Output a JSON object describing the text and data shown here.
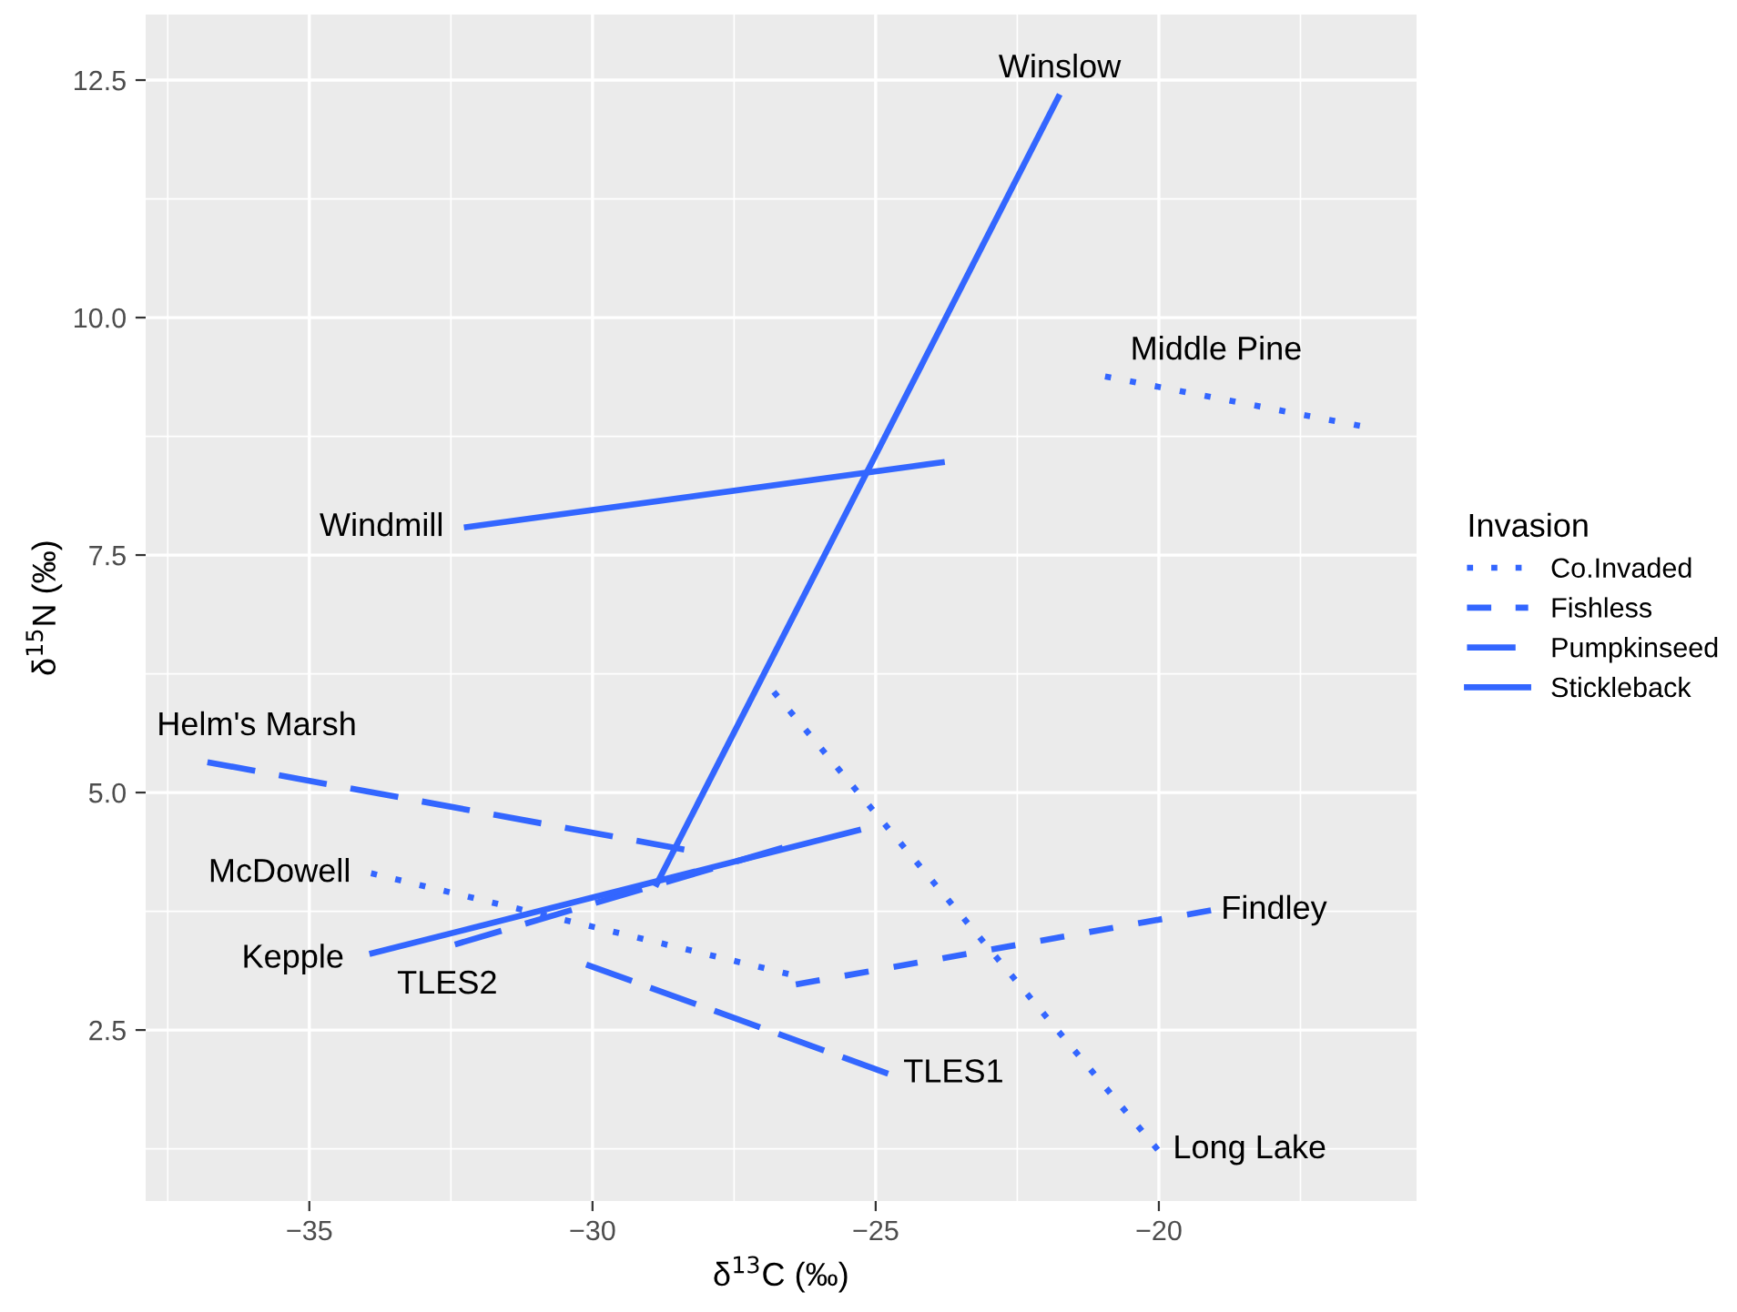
{
  "chart_data": {
    "type": "line",
    "xlabel": "δ$^{13}$C (‰)",
    "ylabel": "δ$^{15}$N (‰)",
    "legend_title": "Invasion",
    "series": [
      {
        "name": "Co.Invaded",
        "color": "#3366ff",
        "line_style": "dotted",
        "x": [
          -33.91,
          -26.54,
          null,
          -26.8,
          -20.02,
          null,
          -20.95,
          -16.45
        ],
        "values": [
          4.15,
          3.09,
          null,
          6.06,
          1.24,
          null,
          9.38,
          8.86
        ]
      },
      {
        "name": "Fishless",
        "color": "#3366ff",
        "line_style": "dashed",
        "x": [
          -26.41,
          -19.08
        ],
        "values": [
          2.98,
          3.76
        ]
      },
      {
        "name": "Pumpkinseed",
        "color": "#3366ff",
        "line_style": "longdash",
        "x": [
          -36.8,
          -28.38,
          null,
          -32.43,
          -26.64,
          null,
          -30.11,
          -24.78
        ],
        "values": [
          5.32,
          4.4,
          null,
          3.4,
          4.42,
          null,
          3.19,
          2.04
        ]
      },
      {
        "name": "Stickleback",
        "color": "#3366ff",
        "line_style": "solid",
        "x": [
          -28.89,
          -21.75,
          null,
          -32.27,
          -23.78,
          null,
          -33.94,
          -25.26
        ],
        "values": [
          4.01,
          12.35,
          null,
          7.79,
          8.48,
          null,
          3.3,
          4.61
        ]
      }
    ],
    "annotations": [
      {
        "text": "Winslow",
        "x": -21.75,
        "y": 12.35
      },
      {
        "text": "Middle Pine",
        "x": -20.95,
        "y": 9.38
      },
      {
        "text": "Windmill",
        "x": -32.27,
        "y": 7.79
      },
      {
        "text": "Helm's Marsh",
        "x": -36.8,
        "y": 5.32
      },
      {
        "text": "McDowell",
        "x": -33.91,
        "y": 4.15
      },
      {
        "text": "Findley",
        "x": -19.08,
        "y": 3.76
      },
      {
        "text": "Kepple",
        "x": -33.94,
        "y": 3.3
      },
      {
        "text": "TLES2",
        "x": -32.43,
        "y": 3.4
      },
      {
        "text": "TLES1",
        "x": -24.78,
        "y": 2.04
      },
      {
        "text": "Long Lake",
        "x": -20.02,
        "y": 1.24
      }
    ],
    "xlim": [
      -37.89,
      -15.45
    ],
    "ylim": [
      0.7,
      13.19
    ],
    "xticks": [
      {
        "value": -35,
        "label": "−35"
      },
      {
        "value": -30,
        "label": "−30"
      },
      {
        "value": -25,
        "label": "−25"
      },
      {
        "value": -20,
        "label": "−20"
      }
    ],
    "yticks": [
      2.5,
      {
        "value": 5,
        "label": "5.0"
      },
      7.5,
      {
        "value": 10,
        "label": "10.0"
      },
      12.5
    ],
    "grid": true,
    "legend": "right"
  }
}
